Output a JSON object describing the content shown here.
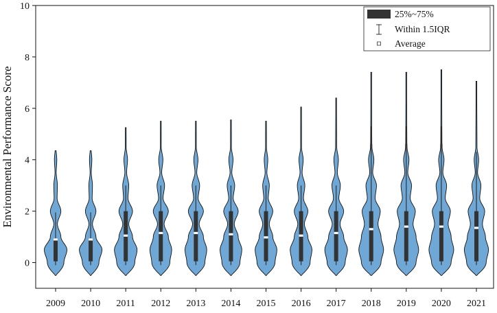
{
  "chart_data": {
    "type": "violin",
    "ylabel": "Environmental Performance Score",
    "xlabel": "",
    "ylim": [
      -1,
      10
    ],
    "yticks": [
      0,
      2,
      4,
      6,
      8,
      10
    ],
    "categories": [
      "2009",
      "2010",
      "2011",
      "2012",
      "2013",
      "2014",
      "2015",
      "2016",
      "2017",
      "2018",
      "2019",
      "2020",
      "2021"
    ],
    "violins": [
      {
        "year": "2009",
        "min": -0.5,
        "max": 4.35,
        "q1": 0.05,
        "q3": 0.95,
        "wl": -0.1,
        "wh": 1.95,
        "mean": 0.9,
        "w": [
          0.55,
          0.75,
          0.35,
          0.12,
          0.35,
          0.1,
          0.12,
          0.04,
          0.08,
          0.02
        ]
      },
      {
        "year": "2010",
        "min": -0.5,
        "max": 4.35,
        "q1": 0.05,
        "q3": 0.95,
        "wl": -0.1,
        "wh": 1.95,
        "mean": 0.9,
        "w": [
          0.55,
          0.75,
          0.35,
          0.12,
          0.35,
          0.1,
          0.12,
          0.04,
          0.08,
          0.02
        ]
      },
      {
        "year": "2011",
        "min": -0.5,
        "max": 5.25,
        "q1": 0.05,
        "q3": 2.0,
        "wl": -0.1,
        "wh": 3.0,
        "mean": 1.05,
        "w": [
          0.6,
          0.75,
          0.45,
          0.2,
          0.45,
          0.15,
          0.2,
          0.06,
          0.12,
          0.03
        ]
      },
      {
        "year": "2012",
        "min": -0.5,
        "max": 5.5,
        "q1": 0.05,
        "q3": 2.0,
        "wl": -0.1,
        "wh": 3.0,
        "mean": 1.15,
        "w": [
          0.6,
          0.72,
          0.5,
          0.22,
          0.5,
          0.15,
          0.25,
          0.06,
          0.14,
          0.03
        ]
      },
      {
        "year": "2013",
        "min": -0.5,
        "max": 5.5,
        "q1": 0.05,
        "q3": 2.0,
        "wl": -0.1,
        "wh": 3.0,
        "mean": 1.15,
        "w": [
          0.6,
          0.72,
          0.5,
          0.22,
          0.5,
          0.15,
          0.25,
          0.06,
          0.14,
          0.03
        ]
      },
      {
        "year": "2014",
        "min": -0.5,
        "max": 5.55,
        "q1": 0.05,
        "q3": 2.0,
        "wl": -0.1,
        "wh": 3.0,
        "mean": 1.1,
        "w": [
          0.6,
          0.72,
          0.48,
          0.22,
          0.48,
          0.15,
          0.25,
          0.06,
          0.14,
          0.03
        ]
      },
      {
        "year": "2015",
        "min": -0.5,
        "max": 5.5,
        "q1": 0.05,
        "q3": 2.0,
        "wl": -0.1,
        "wh": 3.0,
        "mean": 0.98,
        "w": [
          0.6,
          0.72,
          0.45,
          0.22,
          0.45,
          0.15,
          0.22,
          0.06,
          0.12,
          0.03
        ]
      },
      {
        "year": "2016",
        "min": -0.5,
        "max": 6.05,
        "q1": 0.05,
        "q3": 2.0,
        "wl": -0.1,
        "wh": 3.0,
        "mean": 1.05,
        "w": [
          0.6,
          0.72,
          0.45,
          0.22,
          0.45,
          0.16,
          0.25,
          0.07,
          0.14,
          0.03
        ]
      },
      {
        "year": "2017",
        "min": -0.5,
        "max": 6.4,
        "q1": 0.05,
        "q3": 2.0,
        "wl": -0.1,
        "wh": 3.0,
        "mean": 1.15,
        "w": [
          0.6,
          0.75,
          0.5,
          0.26,
          0.5,
          0.18,
          0.28,
          0.08,
          0.15,
          0.04
        ]
      },
      {
        "year": "2018",
        "min": -0.5,
        "max": 7.4,
        "q1": 0.05,
        "q3": 2.0,
        "wl": -0.1,
        "wh": 5.3,
        "mean": 1.3,
        "w": [
          0.65,
          0.82,
          0.65,
          0.45,
          0.6,
          0.26,
          0.35,
          0.1,
          0.18,
          0.05
        ]
      },
      {
        "year": "2019",
        "min": -0.5,
        "max": 7.4,
        "q1": 0.05,
        "q3": 2.0,
        "wl": -0.1,
        "wh": 5.3,
        "mean": 1.4,
        "w": [
          0.65,
          0.82,
          0.65,
          0.45,
          0.6,
          0.26,
          0.35,
          0.1,
          0.18,
          0.05
        ]
      },
      {
        "year": "2020",
        "min": -0.5,
        "max": 7.5,
        "q1": 0.05,
        "q3": 2.0,
        "wl": -0.1,
        "wh": 5.3,
        "mean": 1.4,
        "w": [
          0.65,
          0.82,
          0.65,
          0.45,
          0.6,
          0.26,
          0.35,
          0.1,
          0.18,
          0.05
        ]
      },
      {
        "year": "2021",
        "min": -0.5,
        "max": 7.05,
        "q1": 0.05,
        "q3": 2.0,
        "wl": -0.1,
        "wh": 4.3,
        "mean": 1.35,
        "w": [
          0.65,
          0.8,
          0.6,
          0.4,
          0.55,
          0.22,
          0.3,
          0.08,
          0.15,
          0.04
        ]
      }
    ],
    "legend": {
      "position": "top-right",
      "items": [
        {
          "label": "25%~75%",
          "symbol": "box"
        },
        {
          "label": "Within 1.5IQR",
          "symbol": "whisker"
        },
        {
          "label": "Average",
          "symbol": "square"
        }
      ]
    },
    "colors": {
      "violin_fill": "#6fa8d6",
      "violin_stroke": "#111111",
      "box": "#333333",
      "mean": "#ffffff"
    }
  }
}
